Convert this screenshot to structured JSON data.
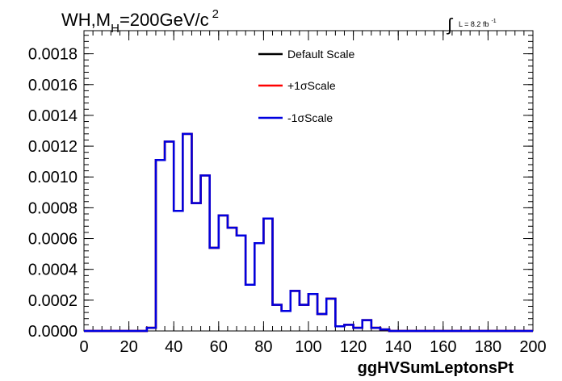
{
  "chart_data": {
    "type": "line",
    "title": {
      "main": "WH,M",
      "sub": "H",
      "rest": "=200GeV/c",
      "sup": "2"
    },
    "lumi": {
      "integral": "∫",
      "text": "L = 8.2 fb",
      "sup": "-1"
    },
    "xlabel": "ggHVSumLeptonsPt",
    "ylabel": "",
    "xlim": [
      0,
      200
    ],
    "ylim": [
      0,
      0.00195
    ],
    "x_ticks": [
      "0",
      "20",
      "40",
      "60",
      "80",
      "100",
      "120",
      "140",
      "160",
      "180",
      "200"
    ],
    "y_ticks": [
      "0.0000",
      "0.0002",
      "0.0004",
      "0.0006",
      "0.0008",
      "0.0010",
      "0.0012",
      "0.0014",
      "0.0016",
      "0.0018"
    ],
    "bin_width": 4,
    "series": [
      {
        "name": "Default Scale",
        "color": "#000000",
        "bins_start": 0,
        "values": [
          0,
          0,
          0,
          0,
          0,
          0,
          0,
          2e-05,
          0.00111,
          0.00123,
          0.00078,
          0.00128,
          0.00083,
          0.00101,
          0.00054,
          0.00075,
          0.00067,
          0.00062,
          0.0003,
          0.00057,
          0.00073,
          0.00017,
          0.00013,
          0.00026,
          0.00017,
          0.00024,
          0.00011,
          0.00021,
          3e-05,
          4e-05,
          2e-05,
          7e-05,
          2e-05,
          1e-05,
          0,
          0,
          0,
          0,
          0,
          0,
          0,
          0,
          0,
          0,
          0,
          0,
          0,
          0,
          0,
          0
        ]
      },
      {
        "name": "+1σScale",
        "color": "#ff0000",
        "bins_start": 0,
        "values": [
          0,
          0,
          0,
          0,
          0,
          0,
          0,
          2e-05,
          0.00111,
          0.00123,
          0.00078,
          0.00128,
          0.00083,
          0.00101,
          0.00054,
          0.00075,
          0.00067,
          0.00062,
          0.0003,
          0.00057,
          0.00073,
          0.00017,
          0.00013,
          0.00026,
          0.00017,
          0.00024,
          0.00011,
          0.00021,
          3e-05,
          4e-05,
          2e-05,
          7e-05,
          2e-05,
          1e-05,
          0,
          0,
          0,
          0,
          0,
          0,
          0,
          0,
          0,
          0,
          0,
          0,
          0,
          0,
          0,
          0
        ]
      },
      {
        "name": "-1σScale",
        "color": "#0000e0",
        "bins_start": 0,
        "values": [
          0,
          0,
          0,
          0,
          0,
          0,
          0,
          2e-05,
          0.00111,
          0.00123,
          0.00078,
          0.00128,
          0.00083,
          0.00101,
          0.00054,
          0.00075,
          0.00067,
          0.00062,
          0.0003,
          0.00057,
          0.00073,
          0.00017,
          0.00013,
          0.00026,
          0.00017,
          0.00024,
          0.00011,
          0.00021,
          3e-05,
          4e-05,
          2e-05,
          7e-05,
          2e-05,
          1e-05,
          0,
          0,
          0,
          0,
          0,
          0,
          0,
          0,
          0,
          0,
          0,
          0,
          0,
          0,
          0,
          0
        ]
      }
    ],
    "legend_position": "top-center",
    "grid": false
  }
}
